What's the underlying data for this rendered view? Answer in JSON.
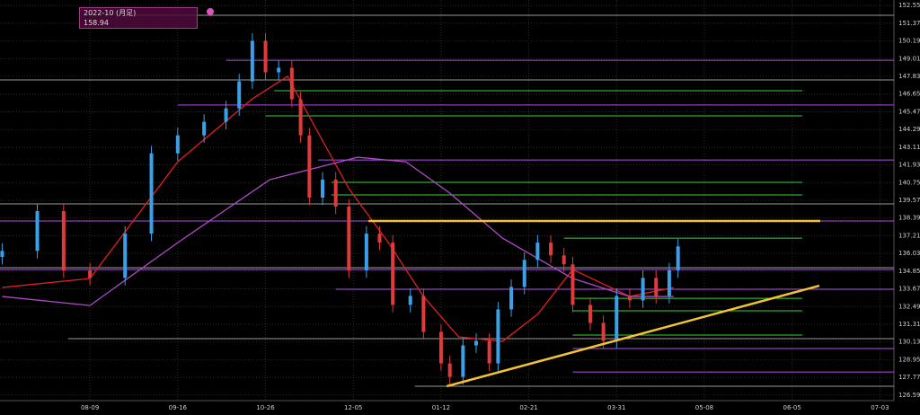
{
  "tooltip": {
    "period": "2022-10 (月足)",
    "price": "158.94"
  },
  "chart_data": {
    "type": "candlestick",
    "up_color": "#3aa0e8",
    "down_color": "#e03a3a",
    "xlim": [
      -20.5,
      183.2
    ],
    "ylim": [
      126.22,
      152.92
    ],
    "xticks": [
      {
        "value": 0,
        "label": "08-09"
      },
      {
        "value": 20,
        "label": "09-16"
      },
      {
        "value": 40,
        "label": "10-26"
      },
      {
        "value": 60,
        "label": "12-05"
      },
      {
        "value": 80,
        "label": "01-12"
      },
      {
        "value": 100,
        "label": "02-21"
      },
      {
        "value": 120,
        "label": "03-31"
      },
      {
        "value": 140,
        "label": "05-08"
      },
      {
        "value": 160,
        "label": "06-05"
      },
      {
        "value": 180,
        "label": "07-03"
      }
    ],
    "yticks": [
      {
        "value": 152.55,
        "label": "152.55"
      },
      151.37,
      150.19,
      149.01,
      147.83,
      146.65,
      145.47,
      144.29,
      143.11,
      141.93,
      140.75,
      139.57,
      138.39,
      137.21,
      136.03,
      134.85,
      133.67,
      132.49,
      131.31,
      130.13,
      128.95,
      127.77,
      126.59
    ],
    "grid": true,
    "x": [
      -20,
      -12,
      -6,
      0,
      8,
      14,
      20,
      26,
      31,
      34,
      37,
      40,
      43,
      46,
      48,
      50,
      53,
      56,
      59,
      63,
      66,
      69,
      73,
      76,
      80,
      82,
      85,
      88,
      91,
      93,
      96,
      99,
      102,
      105,
      108,
      110,
      114,
      117,
      120,
      123,
      126,
      129,
      132,
      134
    ],
    "open": [
      135.8,
      136.2,
      138.85,
      134.9,
      134.4,
      137.35,
      142.7,
      143.9,
      144.8,
      145.7,
      147.5,
      150.2,
      148.1,
      148.4,
      146.3,
      143.9,
      139.75,
      140.95,
      139.15,
      134.9,
      137.35,
      136.75,
      132.6,
      133.2,
      130.8,
      128.7,
      127.8,
      129.9,
      130.2,
      128.7,
      132.3,
      133.8,
      135.6,
      136.75,
      135.9,
      135.3,
      132.6,
      131.4,
      130.2,
      133.2,
      132.9,
      134.4,
      133.2,
      134.9
    ],
    "high": [
      136.7,
      139.35,
      139.35,
      135.4,
      137.85,
      143.2,
      144.4,
      145.3,
      146.2,
      148.0,
      150.7,
      150.7,
      148.9,
      148.9,
      146.8,
      144.4,
      141.45,
      141.45,
      139.65,
      137.85,
      137.85,
      137.25,
      133.7,
      133.7,
      131.3,
      129.2,
      130.4,
      130.7,
      130.7,
      132.8,
      134.3,
      136.1,
      137.25,
      137.25,
      136.4,
      135.8,
      133.1,
      131.9,
      133.7,
      133.7,
      134.9,
      134.9,
      135.4,
      137.0
    ],
    "low": [
      135.3,
      135.7,
      134.4,
      133.9,
      133.9,
      136.85,
      142.2,
      143.4,
      144.3,
      145.2,
      147.0,
      147.6,
      147.6,
      145.8,
      143.4,
      139.25,
      139.25,
      138.65,
      134.4,
      134.4,
      136.25,
      132.1,
      132.1,
      130.3,
      128.2,
      127.3,
      127.3,
      129.4,
      128.2,
      128.2,
      131.8,
      133.3,
      135.1,
      135.4,
      134.8,
      132.1,
      130.9,
      129.7,
      129.7,
      132.4,
      132.4,
      132.7,
      132.7,
      134.4
    ],
    "close": [
      136.2,
      138.85,
      134.9,
      134.4,
      137.35,
      142.7,
      143.9,
      144.8,
      145.7,
      147.5,
      150.2,
      148.1,
      148.4,
      146.3,
      143.9,
      139.75,
      140.95,
      139.15,
      134.9,
      137.35,
      136.75,
      132.6,
      133.2,
      130.8,
      128.7,
      127.8,
      129.9,
      130.2,
      128.7,
      132.3,
      133.8,
      135.6,
      136.75,
      135.9,
      135.3,
      132.6,
      131.4,
      130.2,
      133.2,
      132.9,
      134.4,
      133.2,
      134.9,
      136.5
    ],
    "lines": [
      {
        "color": "#e0201e",
        "x": [
          -20,
          0,
          20,
          37,
          45,
          50,
          59,
          68,
          76,
          84,
          94,
          102,
          110,
          123,
          133
        ],
        "values": [
          133.76,
          134.36,
          142.14,
          146.33,
          147.83,
          145.14,
          140.35,
          136.75,
          133.16,
          130.47,
          130.17,
          131.97,
          134.96,
          133.16,
          133.76
        ]
      },
      {
        "color": "#b04ac8",
        "x": [
          -20,
          0,
          20,
          41,
          61,
          72,
          82,
          94,
          110,
          123,
          133
        ],
        "values": [
          133.16,
          132.56,
          136.75,
          140.95,
          142.44,
          142.14,
          140.05,
          137.05,
          134.36,
          133.16,
          133.16
        ]
      }
    ],
    "levels": [
      {
        "color": "#b44ee8",
        "from": 31,
        "values": [
          148.9
        ]
      },
      {
        "color": "#b44ee8",
        "from": 20,
        "values": [
          145.92
        ]
      },
      {
        "color": "#b44ee8",
        "from": 52,
        "values": [
          142.26
        ]
      },
      {
        "color": "#b44ee8",
        "from": -20.5,
        "values": [
          138.19
        ]
      },
      {
        "color": "#b44ee8",
        "from": -20.5,
        "values": [
          134.96
        ]
      },
      {
        "color": "#b44ee8",
        "from": 56,
        "values": [
          133.64
        ]
      },
      {
        "color": "#b44ee8",
        "from": 110,
        "values": [
          129.69
        ]
      },
      {
        "color": "#b44ee8",
        "from": 110,
        "values": [
          128.13
        ]
      },
      {
        "color": "#3ccf3c",
        "from": 42,
        "to": 162.3,
        "values": [
          146.87
        ]
      },
      {
        "color": "#3ccf3c",
        "from": 40,
        "to": 162.3,
        "values": [
          145.2
        ]
      },
      {
        "color": "#3ccf3c",
        "from": 55,
        "to": 162.3,
        "values": [
          140.77
        ]
      },
      {
        "color": "#3ccf3c",
        "from": 55,
        "to": 162.3,
        "values": [
          139.93
        ]
      },
      {
        "color": "#3ccf3c",
        "from": 108,
        "to": 162.3,
        "values": [
          137.05
        ]
      },
      {
        "color": "#3ccf3c",
        "from": 110,
        "to": 162.3,
        "values": [
          133.04
        ]
      },
      {
        "color": "#3ccf3c",
        "from": 110,
        "to": 162.3,
        "values": [
          132.21
        ]
      },
      {
        "color": "#3ccf3c",
        "from": 110,
        "to": 162.3,
        "values": [
          130.59
        ]
      },
      {
        "color": "#9a9a9a",
        "from": 10,
        "values": [
          151.9
        ]
      },
      {
        "color": "#9a9a9a",
        "from": -20.5,
        "values": [
          147.59
        ]
      },
      {
        "color": "#9a9a9a",
        "from": -20.5,
        "values": [
          139.33
        ]
      },
      {
        "color": "#9a9a9a",
        "from": -20.5,
        "values": [
          135.08
        ]
      },
      {
        "color": "#9a9a9a",
        "from": -5,
        "values": [
          130.35
        ]
      },
      {
        "color": "#9a9a9a",
        "from": 74,
        "values": [
          127.18
        ]
      }
    ],
    "trendlines": [
      {
        "color": "#f4c430",
        "x": [
          63.5,
          166.4
        ],
        "values": [
          138.19,
          138.19
        ]
      },
      {
        "color": "#f4c430",
        "x": [
          81.3,
          166.2
        ],
        "values": [
          127.18,
          133.88
        ]
      }
    ]
  }
}
